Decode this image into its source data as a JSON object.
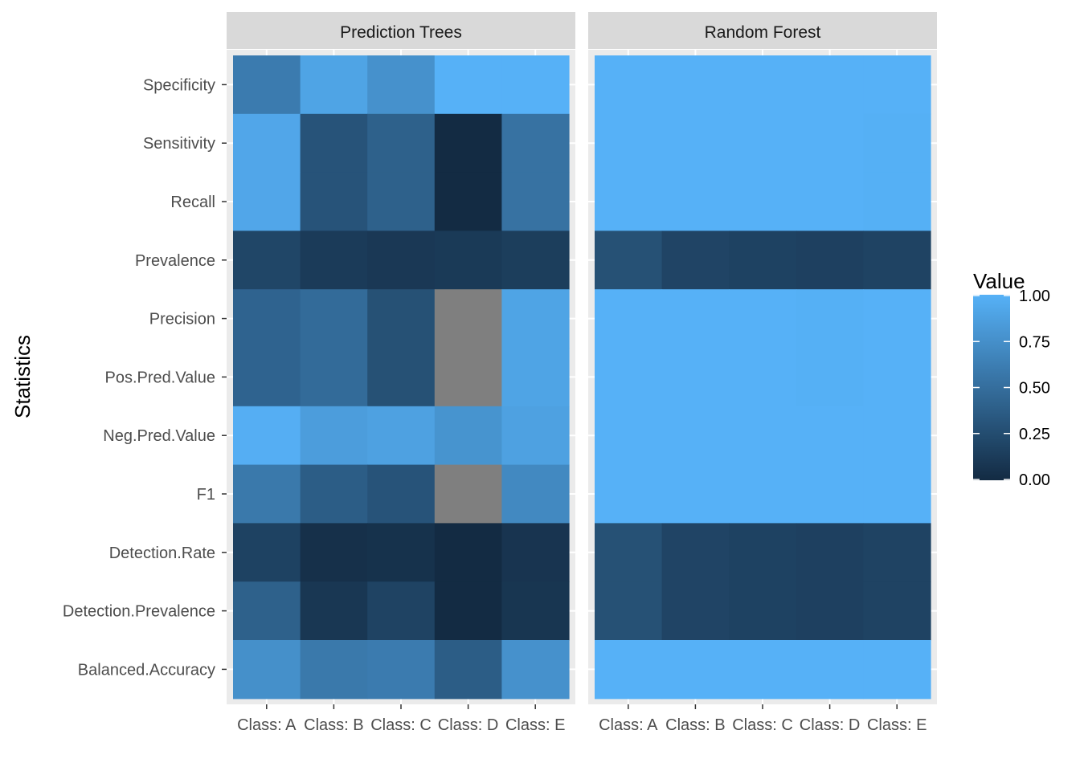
{
  "chart_data": {
    "type": "heatmap",
    "facets": [
      "Prediction Trees",
      "Random Forest"
    ],
    "x_categories": [
      "Class: A",
      "Class: B",
      "Class: C",
      "Class: D",
      "Class: E"
    ],
    "y_categories": [
      "Specificity",
      "Sensitivity",
      "Recall",
      "Prevalence",
      "Precision",
      "Pos.Pred.Value",
      "Neg.Pred.Value",
      "F1",
      "Detection.Rate",
      "Detection.Prevalence",
      "Balanced.Accuracy"
    ],
    "ylabel": "Statistics",
    "xlabel": "",
    "legend": {
      "title": "Value",
      "ticks": [
        0.0,
        0.25,
        0.5,
        0.75,
        1.0
      ],
      "tick_labels": [
        "0.00",
        "0.25",
        "0.50",
        "0.75",
        "1.00"
      ],
      "placement": "right"
    },
    "color_scale": {
      "low": "#132B43",
      "high": "#56B1F7",
      "na": "#7F7F7F"
    },
    "values": {
      "Prediction Trees": [
        [
          0.6,
          0.9,
          0.76,
          1.0,
          1.0
        ],
        [
          0.92,
          0.3,
          0.4,
          0.0,
          0.53
        ],
        [
          0.92,
          0.3,
          0.4,
          0.0,
          0.53
        ],
        [
          0.2,
          0.12,
          0.1,
          0.11,
          0.14
        ],
        [
          0.42,
          0.48,
          0.28,
          null,
          0.9
        ],
        [
          0.42,
          0.48,
          0.28,
          null,
          0.9
        ],
        [
          0.98,
          0.85,
          0.88,
          0.78,
          0.88
        ],
        [
          0.58,
          0.37,
          0.3,
          null,
          0.7
        ],
        [
          0.17,
          0.04,
          0.05,
          0.0,
          0.07
        ],
        [
          0.4,
          0.09,
          0.18,
          0.0,
          0.08
        ],
        [
          0.75,
          0.58,
          0.6,
          0.37,
          0.76
        ]
      ],
      "Random Forest": [
        [
          1.0,
          1.0,
          1.0,
          1.0,
          1.0
        ],
        [
          1.0,
          1.0,
          1.0,
          1.0,
          0.99
        ],
        [
          1.0,
          1.0,
          1.0,
          1.0,
          0.99
        ],
        [
          0.28,
          0.19,
          0.17,
          0.16,
          0.18
        ],
        [
          1.0,
          1.0,
          1.0,
          0.99,
          1.0
        ],
        [
          1.0,
          1.0,
          1.0,
          0.99,
          1.0
        ],
        [
          1.0,
          1.0,
          1.0,
          1.0,
          1.0
        ],
        [
          1.0,
          1.0,
          1.0,
          1.0,
          1.0
        ],
        [
          0.28,
          0.19,
          0.17,
          0.16,
          0.18
        ],
        [
          0.28,
          0.19,
          0.17,
          0.16,
          0.18
        ],
        [
          1.0,
          1.0,
          1.0,
          1.0,
          1.0
        ]
      ]
    },
    "grid": true
  }
}
